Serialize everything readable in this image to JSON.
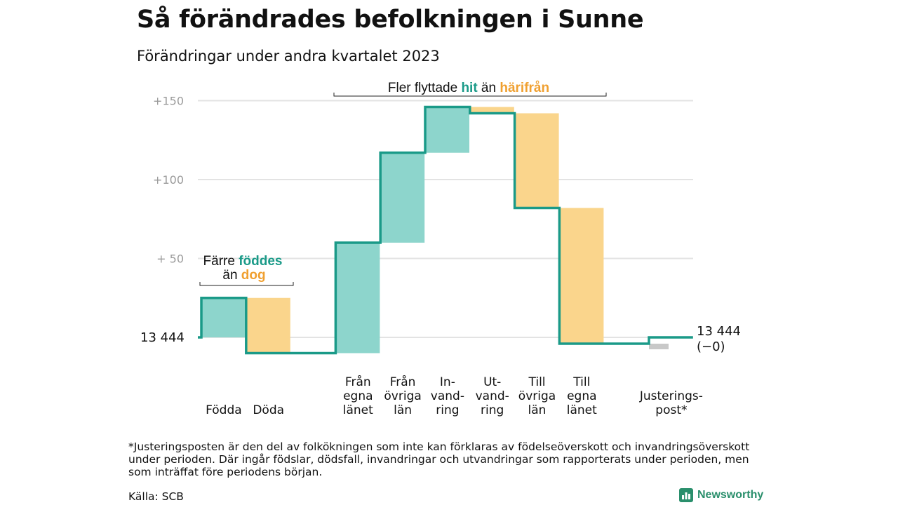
{
  "title": "Så förändrades befolkningen i Sunne",
  "subtitle": "Förändringar under andra kvartalet 2023",
  "footnote": "*Justeringsposten är den del av folkökningen som inte kan förklaras av födelseöverskott och invandringsöverskott under perioden. Där ingår födslar, dödsfall, invandringar och utvandringar som rapporterats under perioden, men som inträffat före periodens början.",
  "source": "Källa: SCB",
  "brand": "Newsworthy",
  "colors": {
    "increase_fill": "#8dd5cc",
    "decrease_fill": "#fad58c",
    "adjustment_fill": "#c8c8c8",
    "step_line": "#1a9a88",
    "teal_text": "#1a9a88",
    "orange_text": "#f0a030",
    "grid": "#e3e3e3",
    "tick_text": "#9a9a9a"
  },
  "annotations": {
    "births": {
      "line1_prefix": "Färre ",
      "line1_highlight": "föddes",
      "line2_prefix": "än ",
      "line2_highlight": "dog"
    },
    "migration": {
      "prefix": "Fler flyttade ",
      "highlight1": "hit",
      "middle": " än ",
      "highlight2": "härifrån"
    }
  },
  "chart_data": {
    "type": "waterfall",
    "baseline": 13444,
    "baseline_label": "13  444",
    "end_label_line1": "13 444",
    "end_label_line2": "(−0)",
    "y_ticks": [
      {
        "value": 150,
        "label": "+150"
      },
      {
        "value": 100,
        "label": "+100"
      },
      {
        "value": 50,
        "label": "+  50"
      }
    ],
    "ylim": [
      -10,
      150
    ],
    "steps": [
      {
        "label": [
          "Födda"
        ],
        "change": 25,
        "kind": "increase"
      },
      {
        "label": [
          "Döda"
        ],
        "change": -35,
        "kind": "decrease"
      },
      {
        "label": [],
        "change": 0,
        "kind": "gap"
      },
      {
        "label": [
          "Från",
          "egna",
          "länet"
        ],
        "change": 70,
        "kind": "increase"
      },
      {
        "label": [
          "Från",
          "övriga",
          "län"
        ],
        "change": 57,
        "kind": "increase"
      },
      {
        "label": [
          "In-",
          "vand-",
          "ring"
        ],
        "change": 29,
        "kind": "increase"
      },
      {
        "label": [
          "Ut-",
          "vand-",
          "ring"
        ],
        "change": -4,
        "kind": "decrease"
      },
      {
        "label": [
          "Till",
          "övriga",
          "län"
        ],
        "change": -60,
        "kind": "decrease"
      },
      {
        "label": [
          "Till",
          "egna",
          "länet"
        ],
        "change": -86,
        "kind": "decrease"
      },
      {
        "label": [],
        "change": 0,
        "kind": "gap"
      },
      {
        "label": [
          "Justerings-",
          "post*"
        ],
        "change": 4,
        "kind": "adjustment"
      }
    ]
  }
}
